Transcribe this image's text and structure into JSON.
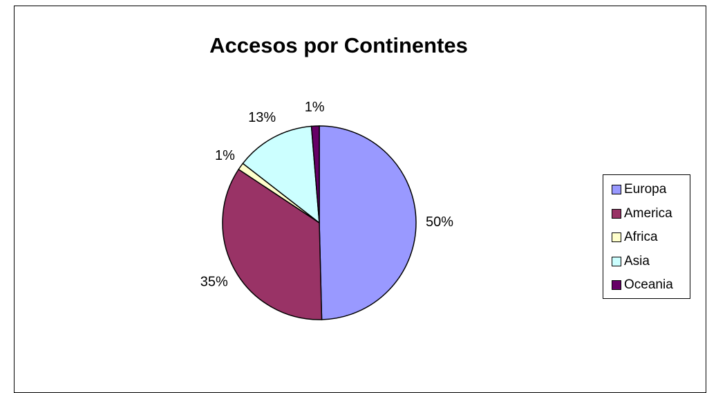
{
  "chart_data": {
    "type": "pie",
    "title": "Accesos por Continentes",
    "categories": [
      "Europa",
      "America",
      "Africa",
      "Asia",
      "Oceania"
    ],
    "values": [
      49.6,
      34.7,
      1.2,
      13.2,
      1.3
    ],
    "labels": [
      "50%",
      "35%",
      "1%",
      "13%",
      "1%"
    ],
    "colors": [
      "#9999FF",
      "#993366",
      "#FFFFCC",
      "#CCFFFF",
      "#660066"
    ],
    "legend": "right"
  }
}
